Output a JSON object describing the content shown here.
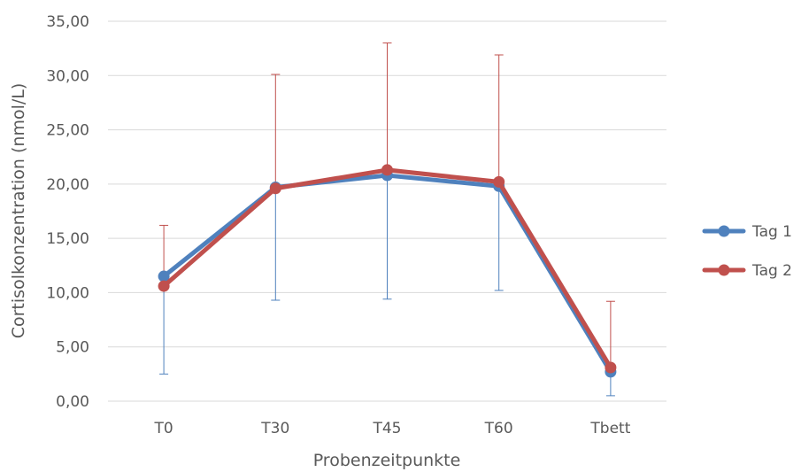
{
  "chart_data": {
    "type": "line",
    "title": "",
    "xlabel": "Probenzeitpunkte",
    "ylabel": "Cortisolkonzentration (nmol/L)",
    "categories": [
      "T0",
      "T30",
      "T45",
      "T60",
      "Tbett"
    ],
    "ylim": [
      0,
      35
    ],
    "yticks": [
      0,
      5,
      10,
      15,
      20,
      25,
      30,
      35
    ],
    "ytick_labels": [
      "0,00",
      "5,00",
      "10,00",
      "15,00",
      "20,00",
      "25,00",
      "30,00",
      "35,00"
    ],
    "grid": "horizontal",
    "legend_position": "right",
    "series": [
      {
        "name": "Tag 1",
        "color": "#4F81BD",
        "values": [
          11.5,
          19.7,
          20.8,
          19.8,
          2.7
        ],
        "error_bar_direction": "down",
        "error_lower": [
          2.5,
          9.3,
          9.4,
          10.2,
          0.5
        ]
      },
      {
        "name": "Tag 2",
        "color": "#C0504D",
        "values": [
          10.6,
          19.6,
          21.3,
          20.2,
          3.1
        ],
        "error_bar_direction": "up",
        "error_upper": [
          16.2,
          30.1,
          33.0,
          31.9,
          9.2
        ]
      }
    ]
  }
}
